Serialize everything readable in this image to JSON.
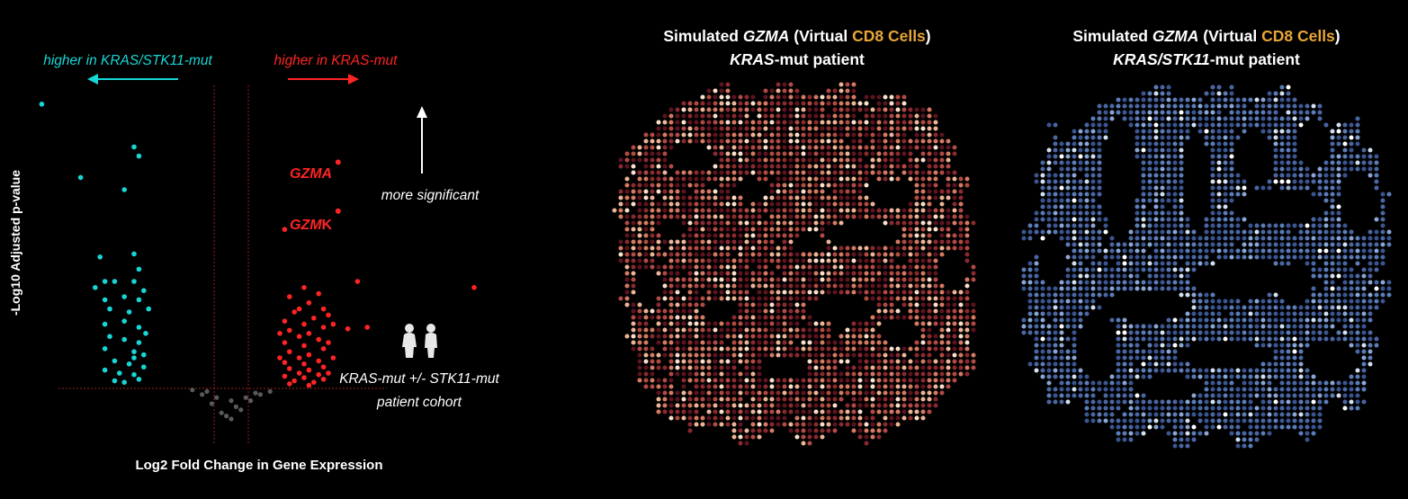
{
  "colors": {
    "background": "#000000",
    "kras_stk11": "#18d6d6",
    "kras": "#ff2424",
    "nonsig": "#5a5a5a",
    "highlight": "#e8a537",
    "threshold": "#c0282a"
  },
  "icons": [
    "arrow-left-icon",
    "arrow-right-icon",
    "arrow-up-icon",
    "people-icon"
  ],
  "chart_data": [
    {
      "type": "scatter",
      "xlabel": "Log2 Fold Change in Gene Expression",
      "ylabel": "-Log10 Adjusted p-value",
      "series": [
        {
          "group": "kras_stk11",
          "label": "higher in KRAS/STK11-mut"
        },
        {
          "group": "kras",
          "label": "higher in KRAS-mut"
        }
      ],
      "annotations": {
        "more_significant": "more significant",
        "cohort_line1": "KRAS-mut +/- STK11-mut",
        "cohort_line2": "patient cohort"
      },
      "genes": [
        {
          "label_italic": "GZMA",
          "label_plain": "",
          "x": 1.1,
          "y": 7.4
        },
        {
          "label_italic": "GZM",
          "label_plain": "K",
          "x": 1.1,
          "y": 5.8
        }
      ],
      "points": {
        "kras_stk11": [
          [
            -1.95,
            9.3
          ],
          [
            -1.0,
            7.9
          ],
          [
            -0.95,
            7.6
          ],
          [
            -1.55,
            6.9
          ],
          [
            -1.1,
            6.5
          ],
          [
            -2.5,
            3.3
          ],
          [
            -1.35,
            4.3
          ],
          [
            -1.0,
            4.4
          ],
          [
            -1.3,
            3.5
          ],
          [
            -0.95,
            3.9
          ],
          [
            -1.4,
            3.3
          ],
          [
            -1.2,
            3.5
          ],
          [
            -1.0,
            3.5
          ],
          [
            -0.9,
            3.2
          ],
          [
            -1.3,
            2.9
          ],
          [
            -1.1,
            3.0
          ],
          [
            -0.95,
            2.9
          ],
          [
            -1.25,
            2.6
          ],
          [
            -1.05,
            2.5
          ],
          [
            -0.85,
            2.6
          ],
          [
            -1.3,
            2.1
          ],
          [
            -1.1,
            2.2
          ],
          [
            -0.95,
            2.0
          ],
          [
            -1.25,
            1.7
          ],
          [
            -1.1,
            1.6
          ],
          [
            -0.95,
            1.5
          ],
          [
            -1.3,
            1.3
          ],
          [
            -1.0,
            1.2
          ],
          [
            -0.9,
            1.1
          ],
          [
            -1.2,
            0.9
          ],
          [
            -1.05,
            0.8
          ],
          [
            -0.9,
            0.7
          ],
          [
            -1.3,
            0.6
          ],
          [
            -1.15,
            0.5
          ],
          [
            -1.0,
            0.45
          ],
          [
            -0.95,
            0.3
          ],
          [
            -1.2,
            0.25
          ],
          [
            -1.1,
            0.2
          ],
          [
            -0.88,
            1.8
          ],
          [
            -1.0,
            1.0
          ]
        ],
        "kras": [
          [
            0.55,
            5.2
          ],
          [
            1.3,
            3.5
          ],
          [
            2.5,
            3.3
          ],
          [
            1.4,
            2.0
          ],
          [
            1.2,
            1.95
          ],
          [
            0.75,
            3.3
          ],
          [
            0.9,
            3.1
          ],
          [
            0.6,
            3.0
          ],
          [
            0.8,
            2.8
          ],
          [
            0.95,
            2.6
          ],
          [
            0.65,
            2.5
          ],
          [
            0.85,
            2.3
          ],
          [
            0.55,
            2.2
          ],
          [
            0.75,
            2.1
          ],
          [
            0.95,
            2.0
          ],
          [
            0.6,
            1.9
          ],
          [
            0.8,
            1.8
          ],
          [
            0.7,
            1.7
          ],
          [
            0.9,
            1.6
          ],
          [
            0.55,
            1.5
          ],
          [
            0.75,
            1.4
          ],
          [
            0.95,
            1.3
          ],
          [
            0.6,
            1.2
          ],
          [
            0.8,
            1.1
          ],
          [
            0.7,
            1.0
          ],
          [
            0.9,
            0.9
          ],
          [
            0.55,
            0.85
          ],
          [
            0.75,
            0.8
          ],
          [
            0.95,
            0.7
          ],
          [
            0.6,
            0.65
          ],
          [
            0.8,
            0.6
          ],
          [
            0.7,
            0.5
          ],
          [
            0.9,
            0.45
          ],
          [
            0.55,
            0.4
          ],
          [
            0.75,
            0.35
          ],
          [
            0.95,
            0.3
          ],
          [
            0.65,
            0.25
          ],
          [
            0.85,
            0.2
          ],
          [
            0.6,
            0.15
          ],
          [
            0.8,
            0.1
          ],
          [
            1.0,
            0.5
          ],
          [
            1.05,
            1.0
          ],
          [
            1.0,
            1.5
          ],
          [
            1.05,
            2.1
          ],
          [
            0.5,
            1.0
          ],
          [
            0.5,
            1.8
          ],
          [
            0.7,
            2.6
          ],
          [
            1.0,
            2.4
          ]
        ],
        "nonsig": [
          [
            -0.3,
            -0.2
          ],
          [
            -0.2,
            -0.5
          ],
          [
            -0.1,
            -0.8
          ],
          [
            0.0,
            -1.0
          ],
          [
            0.1,
            -0.7
          ],
          [
            0.2,
            -0.4
          ],
          [
            0.3,
            -0.2
          ],
          [
            -0.25,
            -0.1
          ],
          [
            0.25,
            -0.15
          ],
          [
            -0.15,
            -0.3
          ],
          [
            0.15,
            -0.3
          ],
          [
            0.05,
            -0.6
          ],
          [
            -0.05,
            -0.9
          ],
          [
            0.0,
            -0.4
          ],
          [
            0.4,
            -0.1
          ],
          [
            -0.4,
            -0.05
          ]
        ]
      }
    },
    {
      "type": "heatmap",
      "title": {
        "pre": "Simulated ",
        "gene": "GZMA",
        "mid": " (Virtual ",
        "highlight": "CD8 Cells",
        "post": ")"
      },
      "subtitle": {
        "italic": "KRAS",
        "plain": "-mut patient"
      },
      "palette": [
        "#5c1420",
        "#8a2a30",
        "#b24a44",
        "#d47a62",
        "#ecb597",
        "#fae0cc"
      ],
      "level_weights": [
        0.22,
        0.2,
        0.2,
        0.17,
        0.12,
        0.09
      ]
    },
    {
      "type": "heatmap",
      "title": {
        "pre": "Simulated ",
        "gene": "GZMA",
        "mid": " (Virtual ",
        "highlight": "CD8 Cells",
        "post": ")"
      },
      "subtitle": {
        "italic": "KRAS/STK11",
        "plain": "-mut patient"
      },
      "palette": [
        "#3a5590",
        "#4a67a3",
        "#5a7db8",
        "#8aa6d4",
        "#d4e0f0",
        "#ffffff"
      ],
      "level_weights": [
        0.3,
        0.32,
        0.2,
        0.1,
        0.05,
        0.03
      ]
    }
  ]
}
